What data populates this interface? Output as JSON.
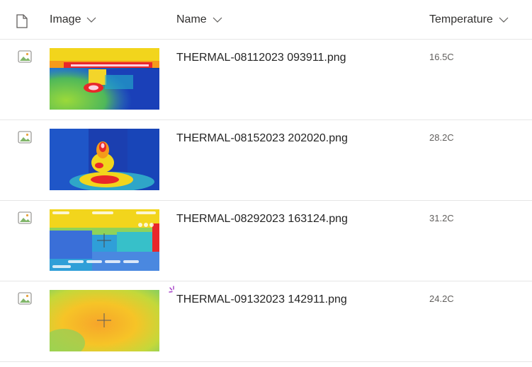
{
  "columns": {
    "image": "Image",
    "name": "Name",
    "temperature": "Temperature"
  },
  "rows": [
    {
      "name": "THERMAL-08112023 093911.png",
      "temperature": "16.5C"
    },
    {
      "name": "THERMAL-08152023 202020.png",
      "temperature": "28.2C"
    },
    {
      "name": "THERMAL-08292023 163124.png",
      "temperature": "31.2C"
    },
    {
      "name": "THERMAL-09132023 142911.png",
      "temperature": "24.2C"
    }
  ],
  "icons": {
    "header": "file-type-icon",
    "row": "image-file-icon",
    "sort": "chevron-down-icon",
    "new_item": "sparkle-icon"
  },
  "colors": {
    "divider": "#e6e6e6",
    "new_item_accent": "#a43ec6"
  }
}
